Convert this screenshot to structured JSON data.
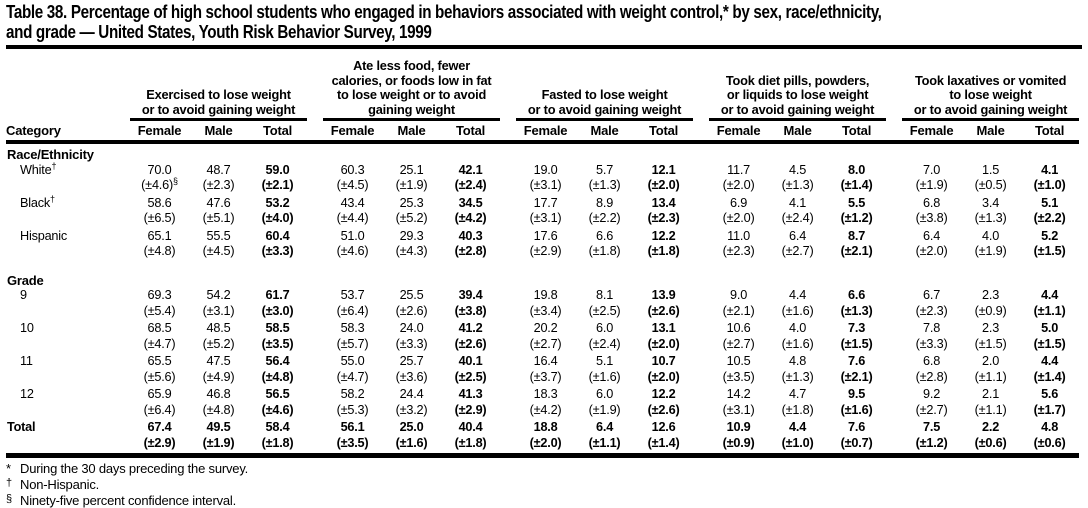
{
  "title": {
    "lines": [
      "Table 38. Percentage of high school students who engaged in behaviors associated with weight control,* by sex, race/ethnicity,",
      "and grade — United States, Youth Risk Behavior Survey, 1999"
    ]
  },
  "table": {
    "category_label": "Category",
    "groups": [
      {
        "label_lines": [
          "Exercised to lose weight",
          "or to avoid gaining weight"
        ],
        "columns": [
          "Female",
          "Male",
          "Total"
        ]
      },
      {
        "label_lines": [
          "Ate less food, fewer",
          "calories, or foods low in fat",
          "to lose weight or to avoid",
          "gaining weight"
        ],
        "columns": [
          "Female",
          "Male",
          "Total"
        ]
      },
      {
        "label_lines": [
          "Fasted to lose weight",
          "or to avoid gaining weight"
        ],
        "columns": [
          "Female",
          "Male",
          "Total"
        ]
      },
      {
        "label_lines": [
          "Took diet pills, powders,",
          "or liquids to lose weight",
          "or to avoid gaining weight"
        ],
        "columns": [
          "Female",
          "Male",
          "Total"
        ]
      },
      {
        "label_lines": [
          "Took laxatives or vomited",
          "to lose weight",
          "or to avoid gaining weight"
        ],
        "columns": [
          "Female",
          "Male",
          "Total"
        ]
      }
    ],
    "sections": [
      {
        "header": "Race/Ethnicity",
        "rows": [
          {
            "label": "White",
            "label_sup": "†",
            "first_ci_sup": "§",
            "values": [
              "70.0",
              "48.7",
              "59.0",
              "60.3",
              "25.1",
              "42.1",
              "19.0",
              "5.7",
              "12.1",
              "11.7",
              "4.5",
              "8.0",
              "7.0",
              "1.5",
              "4.1"
            ],
            "cis": [
              "(±4.6)",
              "(±2.3)",
              "(±2.1)",
              "(±4.5)",
              "(±1.9)",
              "(±2.4)",
              "(±3.1)",
              "(±1.3)",
              "(±2.0)",
              "(±2.0)",
              "(±1.3)",
              "(±1.4)",
              "(±1.9)",
              "(±0.5)",
              "(±1.0)"
            ]
          },
          {
            "label": "Black",
            "label_sup": "†",
            "values": [
              "58.6",
              "47.6",
              "53.2",
              "43.4",
              "25.3",
              "34.5",
              "17.7",
              "8.9",
              "13.4",
              "6.9",
              "4.1",
              "5.5",
              "6.8",
              "3.4",
              "5.1"
            ],
            "cis": [
              "(±6.5)",
              "(±5.1)",
              "(±4.0)",
              "(±4.4)",
              "(±5.2)",
              "(±4.2)",
              "(±3.1)",
              "(±2.2)",
              "(±2.3)",
              "(±2.0)",
              "(±2.4)",
              "(±1.2)",
              "(±3.8)",
              "(±1.3)",
              "(±2.2)"
            ]
          },
          {
            "label": "Hispanic",
            "values": [
              "65.1",
              "55.5",
              "60.4",
              "51.0",
              "29.3",
              "40.3",
              "17.6",
              "6.6",
              "12.2",
              "11.0",
              "6.4",
              "8.7",
              "6.4",
              "4.0",
              "5.2"
            ],
            "cis": [
              "(±4.8)",
              "(±4.5)",
              "(±3.3)",
              "(±4.6)",
              "(±4.3)",
              "(±2.8)",
              "(±2.9)",
              "(±1.8)",
              "(±1.8)",
              "(±2.3)",
              "(±2.7)",
              "(±2.1)",
              "(±2.0)",
              "(±1.9)",
              "(±1.5)"
            ]
          }
        ]
      },
      {
        "header": "Grade",
        "rows": [
          {
            "label": "9",
            "values": [
              "69.3",
              "54.2",
              "61.7",
              "53.7",
              "25.5",
              "39.4",
              "19.8",
              "8.1",
              "13.9",
              "9.0",
              "4.4",
              "6.6",
              "6.7",
              "2.3",
              "4.4"
            ],
            "cis": [
              "(±5.4)",
              "(±3.1)",
              "(±3.0)",
              "(±6.4)",
              "(±2.6)",
              "(±3.8)",
              "(±3.4)",
              "(±2.5)",
              "(±2.6)",
              "(±2.1)",
              "(±1.6)",
              "(±1.3)",
              "(±2.3)",
              "(±0.9)",
              "(±1.1)"
            ]
          },
          {
            "label": "10",
            "values": [
              "68.5",
              "48.5",
              "58.5",
              "58.3",
              "24.0",
              "41.2",
              "20.2",
              "6.0",
              "13.1",
              "10.6",
              "4.0",
              "7.3",
              "7.8",
              "2.3",
              "5.0"
            ],
            "cis": [
              "(±4.7)",
              "(±5.2)",
              "(±3.5)",
              "(±5.7)",
              "(±3.3)",
              "(±2.6)",
              "(±2.7)",
              "(±2.4)",
              "(±2.0)",
              "(±2.7)",
              "(±1.6)",
              "(±1.5)",
              "(±3.3)",
              "(±1.5)",
              "(±1.5)"
            ]
          },
          {
            "label": "11",
            "values": [
              "65.5",
              "47.5",
              "56.4",
              "55.0",
              "25.7",
              "40.1",
              "16.4",
              "5.1",
              "10.7",
              "10.5",
              "4.8",
              "7.6",
              "6.8",
              "2.0",
              "4.4"
            ],
            "cis": [
              "(±5.6)",
              "(±4.9)",
              "(±4.8)",
              "(±4.7)",
              "(±3.6)",
              "(±2.5)",
              "(±3.7)",
              "(±1.6)",
              "(±2.0)",
              "(±3.5)",
              "(±1.3)",
              "(±2.1)",
              "(±2.8)",
              "(±1.1)",
              "(±1.4)"
            ]
          },
          {
            "label": "12",
            "values": [
              "65.9",
              "46.8",
              "56.5",
              "58.2",
              "24.4",
              "41.3",
              "18.3",
              "6.0",
              "12.2",
              "14.2",
              "4.7",
              "9.5",
              "9.2",
              "2.1",
              "5.6"
            ],
            "cis": [
              "(±6.4)",
              "(±4.8)",
              "(±4.6)",
              "(±5.3)",
              "(±3.2)",
              "(±2.9)",
              "(±4.2)",
              "(±1.9)",
              "(±2.6)",
              "(±3.1)",
              "(±1.8)",
              "(±1.6)",
              "(±2.7)",
              "(±1.1)",
              "(±1.7)"
            ]
          }
        ]
      }
    ],
    "total_row": {
      "label": "Total",
      "values": [
        "67.4",
        "49.5",
        "58.4",
        "56.1",
        "25.0",
        "40.4",
        "18.8",
        "6.4",
        "12.6",
        "10.9",
        "4.4",
        "7.6",
        "7.5",
        "2.2",
        "4.8"
      ],
      "cis": [
        "(±2.9)",
        "(±1.9)",
        "(±1.8)",
        "(±3.5)",
        "(±1.6)",
        "(±1.8)",
        "(±2.0)",
        "(±1.1)",
        "(±1.4)",
        "(±0.9)",
        "(±1.0)",
        "(±0.7)",
        "(±1.2)",
        "(±0.6)",
        "(±0.6)"
      ]
    }
  },
  "footnotes": [
    {
      "symbol": "*",
      "text": "During the 30 days preceding the survey."
    },
    {
      "symbol": "†",
      "text": "Non-Hispanic."
    },
    {
      "symbol": "§",
      "text": "Ninety-five percent confidence interval."
    }
  ]
}
